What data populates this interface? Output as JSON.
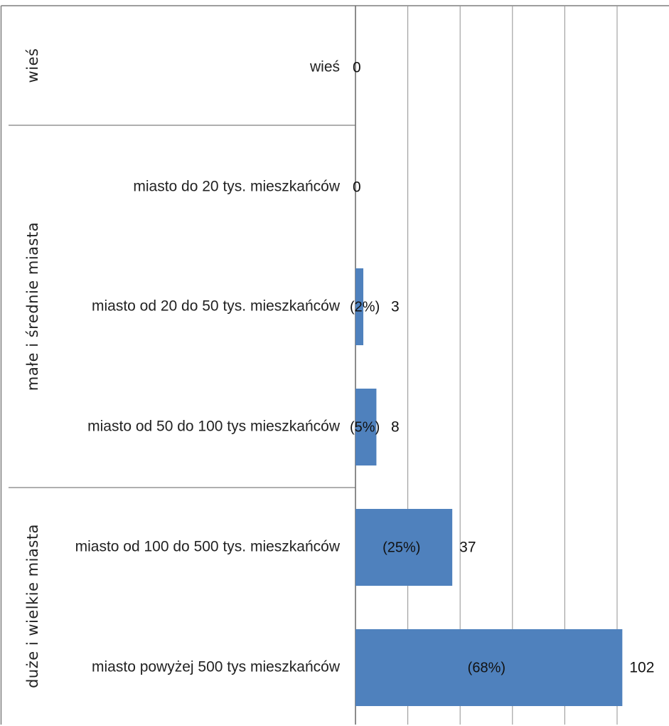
{
  "chart_data": {
    "type": "bar",
    "orientation": "horizontal",
    "groups": [
      {
        "label": "wieś",
        "categories": [
          "wieś"
        ]
      },
      {
        "label": "małe i średnie miasta",
        "categories": [
          "miasto do 20 tys. mieszkańców",
          "miasto od 20 do 50 tys. mieszkańców",
          "miasto od 50 do 100 tys mieszkańców"
        ]
      },
      {
        "label": "duże i wielkie miasta",
        "categories": [
          "miasto od 100 do 500 tys. mieszkańców",
          "miasto powyżej 500 tys mieszkańców"
        ]
      }
    ],
    "categories": [
      "wieś",
      "miasto do 20 tys. mieszkańców",
      "miasto od 20 do 50 tys. mieszkańców",
      "miasto od 50 do 100 tys mieszkańców",
      "miasto od 100 do 500 tys. mieszkańców",
      "miasto powyżej 500 tys mieszkańców"
    ],
    "values": [
      0,
      0,
      3,
      8,
      37,
      102
    ],
    "value_labels": [
      "0",
      "0",
      "3",
      "8",
      "37",
      "102"
    ],
    "percent_labels": [
      "",
      "",
      "(2%)",
      "(5%)",
      "(25%)",
      "(68%)"
    ],
    "xlim": [
      0,
      120
    ],
    "grid": true,
    "bar_color": "#4f81bd"
  }
}
